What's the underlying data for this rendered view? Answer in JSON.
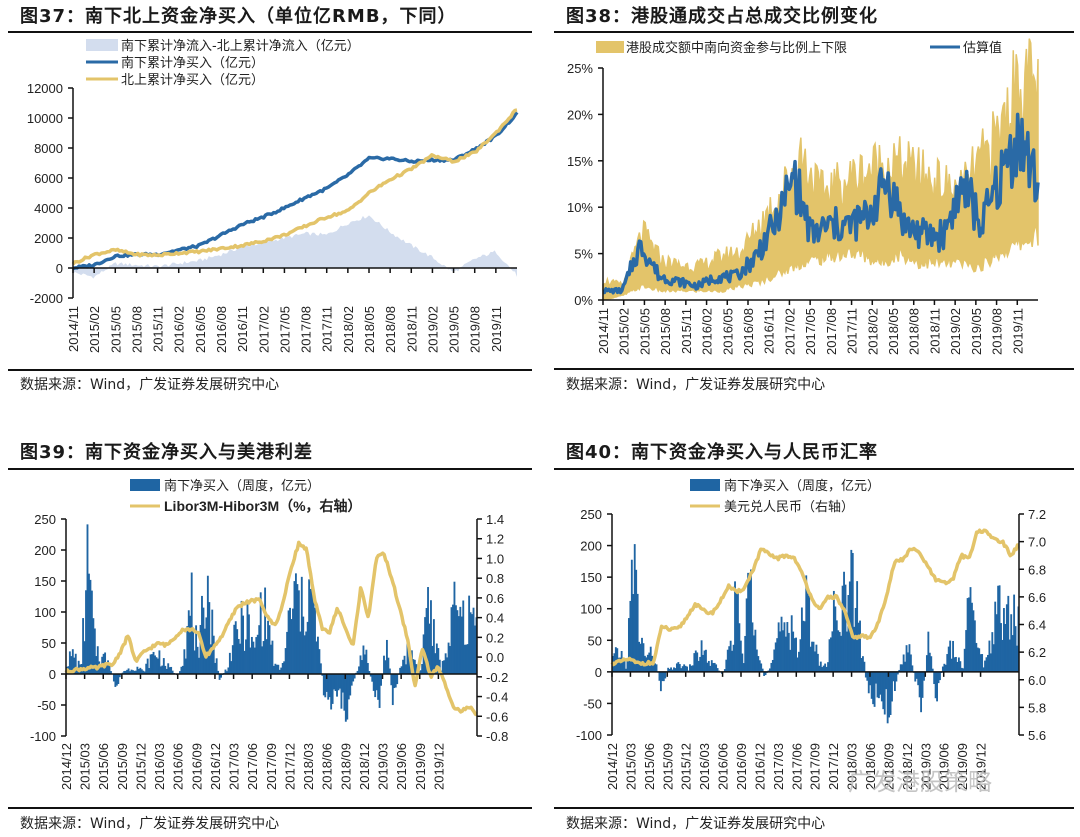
{
  "charts": [
    {
      "id": "fig37",
      "title": "图37：南下北上资金净买入（单位亿RMB，下同）",
      "source": "数据来源：Wind，广发证券发展研究中心",
      "chart_data": {
        "type": "line",
        "title": "南下北上资金净买入（单位亿RMB，下同）",
        "xlabel": "",
        "ylabel": "",
        "ylim": [
          -2000,
          12000
        ],
        "yticks": [
          -2000,
          0,
          2000,
          4000,
          6000,
          8000,
          10000,
          12000
        ],
        "categories": [
          "2014/11",
          "2015/02",
          "2015/05",
          "2015/08",
          "2015/11",
          "2016/02",
          "2016/05",
          "2016/08",
          "2016/11",
          "2017/02",
          "2017/05",
          "2017/08",
          "2017/11",
          "2018/02",
          "2018/05",
          "2018/08",
          "2018/11",
          "2019/02",
          "2019/05",
          "2019/08",
          "2019/11"
        ],
        "legend": "top-left",
        "series": [
          {
            "name": "南下累计净流入-北上累计净流入（亿元）",
            "kind": "area",
            "color": "#d3ddee",
            "values": [
              -300,
              -600,
              300,
              200,
              100,
              300,
              500,
              900,
              1400,
              1700,
              2000,
              2300,
              2200,
              3000,
              3500,
              2400,
              1500,
              700,
              -300,
              600,
              1100,
              -500
            ]
          },
          {
            "name": "南下累计净买入（亿元）",
            "kind": "line",
            "color": "#2a6aa6",
            "values": [
              0,
              200,
              800,
              900,
              900,
              1200,
              1500,
              2200,
              2900,
              3400,
              4000,
              4700,
              5300,
              6200,
              7300,
              7300,
              7100,
              7200,
              7200,
              7900,
              8800,
              10300
            ]
          },
          {
            "name": "北上累计净买入（亿元）",
            "kind": "line",
            "color": "#e3c46a",
            "values": [
              300,
              900,
              1200,
              900,
              850,
              1000,
              1100,
              1300,
              1500,
              1800,
              2200,
              2800,
              3400,
              3800,
              5000,
              5900,
              6600,
              7500,
              7100,
              7700,
              9000,
              10600
            ]
          }
        ]
      }
    },
    {
      "id": "fig38",
      "title": "图38：港股通成交占总成交比例变化",
      "source": "数据来源：Wind，广发证券发展研究中心",
      "chart_data": {
        "type": "area",
        "title": "港股通成交占总成交比例变化",
        "xlabel": "",
        "ylabel": "",
        "ylim": [
          0,
          25
        ],
        "yticks": [
          0,
          5,
          10,
          15,
          20,
          25
        ],
        "ytick_format": "percent",
        "categories": [
          "2014/11",
          "2015/02",
          "2015/05",
          "2015/08",
          "2015/11",
          "2016/02",
          "2016/05",
          "2016/08",
          "2016/11",
          "2017/02",
          "2017/05",
          "2017/08",
          "2017/11",
          "2018/02",
          "2018/05",
          "2018/08",
          "2018/11",
          "2019/02",
          "2019/05",
          "2019/08",
          "2019/11"
        ],
        "legend": "top",
        "series": [
          {
            "name": "港股成交额中南向资金参与比例上下限",
            "kind": "band",
            "color": "#e3c46a",
            "upper": [
              2,
              1.5,
              7,
              4,
              3.5,
              3.5,
              4.5,
              5,
              8,
              11,
              15,
              11,
              12,
              13,
              14,
              14,
              13,
              12,
              11,
              14,
              17,
              23,
              22
            ],
            "lower": [
              0,
              0.5,
              1.5,
              1,
              1,
              1,
              1,
              1.5,
              2,
              3,
              4,
              4.5,
              5,
              5,
              4,
              5,
              4,
              4,
              4,
              3.5,
              5,
              6,
              7
            ]
          },
          {
            "name": "估算值",
            "kind": "line",
            "color": "#2a6aa6",
            "values": [
              1,
              1,
              6,
              2.5,
              2,
              1.5,
              2.5,
              2.5,
              4.5,
              8,
              14,
              7,
              8,
              8,
              9,
              13,
              8,
              7,
              7,
              13,
              8,
              13,
              18,
              12
            ]
          }
        ]
      }
    },
    {
      "id": "fig39",
      "title": "图39：南下资金净买入与美港利差",
      "source": "数据来源：Wind，广发证券发展研究中心",
      "chart_data": {
        "type": "bar",
        "title": "南下资金净买入与美港利差",
        "xlabel": "",
        "ylabel": "",
        "ylim": [
          -100,
          250
        ],
        "yticks": [
          -100,
          -50,
          0,
          50,
          100,
          150,
          200,
          250
        ],
        "y2lim": [
          -0.8,
          1.4
        ],
        "y2ticks": [
          -0.8,
          -0.6,
          -0.4,
          -0.2,
          0.0,
          0.2,
          0.4,
          0.6,
          0.8,
          1.0,
          1.2,
          1.4
        ],
        "categories": [
          "2014/12",
          "2015/03",
          "2015/06",
          "2015/09",
          "2015/12",
          "2016/03",
          "2016/06",
          "2016/09",
          "2016/12",
          "2017/03",
          "2017/06",
          "2017/09",
          "2017/12",
          "2018/03",
          "2018/06",
          "2018/09",
          "2018/12",
          "2019/03",
          "2019/06",
          "2019/09",
          "2019/12"
        ],
        "legend": "top",
        "series": [
          {
            "name": "南下净买入（周度，亿元）",
            "kind": "bar",
            "axis": "left",
            "color": "#1f65a3",
            "values": [
              25,
              40,
              10,
              215,
              60,
              30,
              35,
              -30,
              5,
              10,
              15,
              5,
              30,
              45,
              20,
              10,
              -5,
              55,
              140,
              15,
              215,
              80,
              -10,
              10,
              60,
              95,
              100,
              40,
              130,
              100,
              15,
              10,
              100,
              160,
              120,
              175,
              80,
              -30,
              -50,
              -40,
              -80,
              -30,
              20,
              50,
              -20,
              -60,
              70,
              -50,
              10,
              50,
              30,
              5,
              160,
              60,
              10,
              70,
              130,
              100,
              110,
              105
            ]
          },
          {
            "name": "Libor3M-Hibor3M（%，右轴）",
            "kind": "line",
            "axis": "right",
            "color": "#e3c46a",
            "values": [
              -0.15,
              -0.13,
              -0.12,
              -0.11,
              -0.11,
              -0.08,
              -0.08,
              0.05,
              0.22,
              -0.05,
              0.05,
              0.1,
              0.14,
              0.12,
              0.2,
              0.28,
              0.28,
              0.26,
              0.0,
              0.1,
              0.2,
              0.35,
              0.5,
              0.55,
              0.57,
              0.58,
              0.4,
              0.32,
              0.55,
              0.9,
              1.15,
              1.1,
              0.6,
              0.3,
              0.25,
              0.5,
              0.3,
              0.1,
              0.7,
              0.4,
              1.0,
              1.05,
              0.8,
              0.5,
              0.2,
              -0.3,
              0.1,
              -0.2,
              -0.1,
              -0.3,
              -0.5,
              -0.55,
              -0.5,
              -0.6
            ]
          }
        ]
      }
    },
    {
      "id": "fig40",
      "title": "图40：南下资金净买入与人民币汇率",
      "source": "数据来源：Wind，广发证券发展研究中心",
      "chart_data": {
        "type": "bar",
        "title": "南下资金净买入与人民币汇率",
        "xlabel": "",
        "ylabel": "",
        "ylim": [
          -100,
          250
        ],
        "yticks": [
          -100,
          -50,
          0,
          50,
          100,
          150,
          200,
          250
        ],
        "y2lim": [
          5.6,
          7.2
        ],
        "y2ticks": [
          5.6,
          5.8,
          6.0,
          6.2,
          6.4,
          6.6,
          6.8,
          7.0,
          7.2
        ],
        "categories": [
          "2014/12",
          "2015/03",
          "2015/06",
          "2015/09",
          "2015/12",
          "2016/03",
          "2016/06",
          "2016/09",
          "2016/12",
          "2017/03",
          "2017/06",
          "2017/09",
          "2017/12",
          "2018/03",
          "2018/06",
          "2018/09",
          "2018/12",
          "2019/03",
          "2019/06",
          "2019/09",
          "2019/12"
        ],
        "legend": "top",
        "series": [
          {
            "name": "南下净买入（周度，亿元）",
            "kind": "bar",
            "axis": "left",
            "color": "#1f65a3",
            "values": [
              25,
              40,
              10,
              215,
              60,
              30,
              35,
              -30,
              5,
              10,
              15,
              5,
              30,
              45,
              20,
              10,
              -5,
              55,
              140,
              15,
              215,
              80,
              -10,
              10,
              60,
              95,
              100,
              40,
              130,
              100,
              15,
              10,
              100,
              160,
              120,
              175,
              80,
              -30,
              -50,
              -40,
              -80,
              -30,
              20,
              50,
              -20,
              -60,
              70,
              -50,
              10,
              50,
              30,
              5,
              160,
              60,
              10,
              70,
              130,
              100,
              110,
              105
            ]
          },
          {
            "name": "美元兑人民币（右轴）",
            "kind": "line",
            "axis": "right",
            "color": "#e3c46a",
            "values": [
              6.12,
              6.13,
              6.15,
              6.12,
              6.12,
              6.12,
              6.39,
              6.36,
              6.37,
              6.45,
              6.55,
              6.5,
              6.48,
              6.56,
              6.68,
              6.63,
              6.67,
              6.8,
              6.95,
              6.9,
              6.88,
              6.9,
              6.88,
              6.75,
              6.6,
              6.5,
              6.6,
              6.6,
              6.5,
              6.3,
              6.32,
              6.3,
              6.4,
              6.6,
              6.85,
              6.87,
              6.95,
              6.92,
              6.82,
              6.72,
              6.7,
              6.72,
              6.9,
              6.88,
              7.08,
              7.07,
              7.02,
              7.0,
              6.9,
              6.98
            ]
          }
        ]
      }
    }
  ],
  "watermark": "广发港股策略"
}
